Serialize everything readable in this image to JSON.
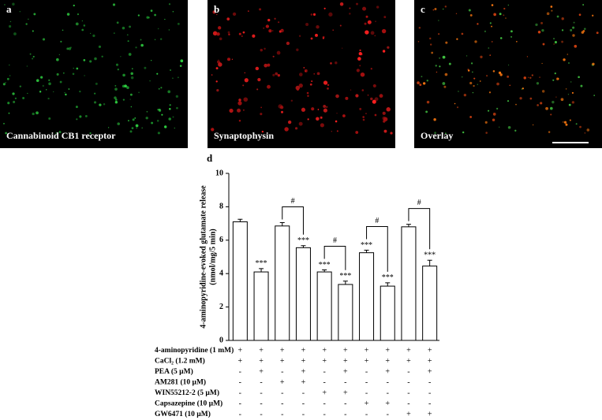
{
  "panels": [
    {
      "letter": "a",
      "caption": "Cannabinoid CB1 receptor"
    },
    {
      "letter": "b",
      "caption": "Synaptophysin"
    },
    {
      "letter": "c",
      "caption": "Overlay"
    }
  ],
  "chart_data": {
    "type": "bar",
    "panel_label": "d",
    "ylabel": [
      "4-aminopyridine-evoked glutamate release",
      "(nmol/mg/5 min)"
    ],
    "values": [
      7.1,
      4.1,
      6.85,
      5.55,
      4.1,
      3.35,
      5.25,
      3.25,
      6.8,
      4.45
    ],
    "errors": [
      0.15,
      0.2,
      0.2,
      0.12,
      0.12,
      0.2,
      0.15,
      0.2,
      0.15,
      0.35
    ],
    "significance": [
      null,
      "***",
      null,
      "***",
      "***",
      "***",
      "***",
      "***",
      null,
      "***"
    ],
    "comparisons": [
      {
        "pair": [
          2,
          3
        ],
        "label": "#"
      },
      {
        "pair": [
          4,
          5
        ],
        "label": "#"
      },
      {
        "pair": [
          6,
          7
        ],
        "label": "#"
      },
      {
        "pair": [
          8,
          9
        ],
        "label": "#"
      }
    ],
    "color": "#ffffff",
    "ylim": [
      0,
      10
    ],
    "yticks": [
      0,
      2,
      4,
      6,
      8,
      10
    ],
    "treatments": [
      {
        "label": "4-aminopyridine (1 mM)",
        "signs": [
          "+",
          "+",
          "+",
          "+",
          "+",
          "+",
          "+",
          "+",
          "+",
          "+"
        ]
      },
      {
        "label": "CaCl₂ (1.2 mM)",
        "signs": [
          "+",
          "+",
          "+",
          "+",
          "+",
          "+",
          "+",
          "+",
          "+",
          "+"
        ]
      },
      {
        "label": "PEA (5 µM)",
        "signs": [
          "-",
          "+",
          "-",
          "+",
          "-",
          "+",
          "-",
          "+",
          "-",
          "+"
        ]
      },
      {
        "label": "AM281 (10 µM)",
        "signs": [
          "-",
          "-",
          "+",
          "+",
          "-",
          "-",
          "-",
          "-",
          "-",
          "-"
        ]
      },
      {
        "label": "WIN55212-2 (5 µM)",
        "signs": [
          "-",
          "-",
          "-",
          "-",
          "+",
          "+",
          "-",
          "-",
          "-",
          "-"
        ]
      },
      {
        "label": "Capsazepine (10 µM)",
        "signs": [
          "-",
          "-",
          "-",
          "-",
          "-",
          "-",
          "+",
          "+",
          "-",
          "-"
        ]
      },
      {
        "label": "GW6471 (10 µM)",
        "signs": [
          "-",
          "-",
          "-",
          "-",
          "-",
          "-",
          "-",
          "-",
          "+",
          "+"
        ]
      }
    ]
  }
}
